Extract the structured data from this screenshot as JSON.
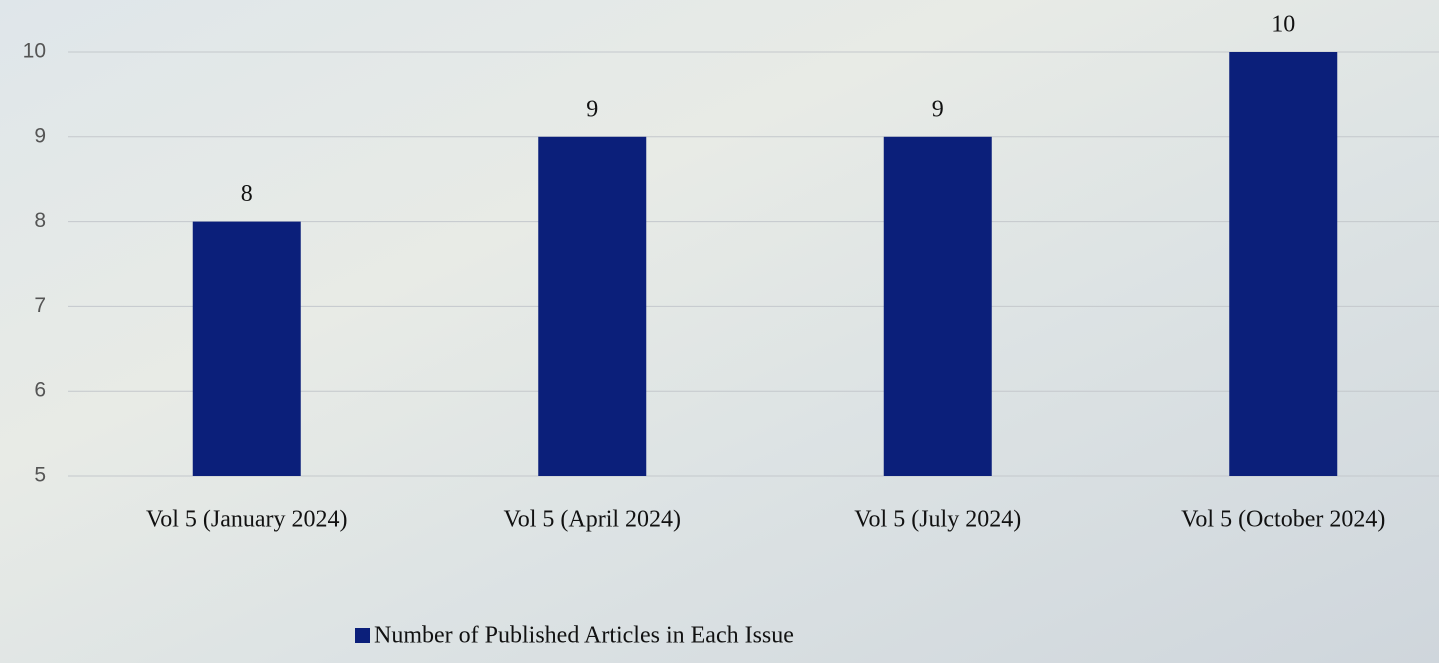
{
  "chart_data": {
    "type": "bar",
    "categories": [
      "Vol 5 (January 2024)",
      "Vol 5 (April 2024)",
      "Vol 5 (July 2024)",
      "Vol 5 (October 2024)"
    ],
    "series": [
      {
        "name": "Number of Published Articles in Each Issue",
        "color": "#0b1f7a",
        "values": [
          8,
          9,
          9,
          10
        ]
      }
    ],
    "ylim": [
      5,
      10
    ],
    "yticks": [
      5,
      6,
      7,
      8,
      9,
      10
    ],
    "grid": true,
    "legend": "bottom"
  }
}
